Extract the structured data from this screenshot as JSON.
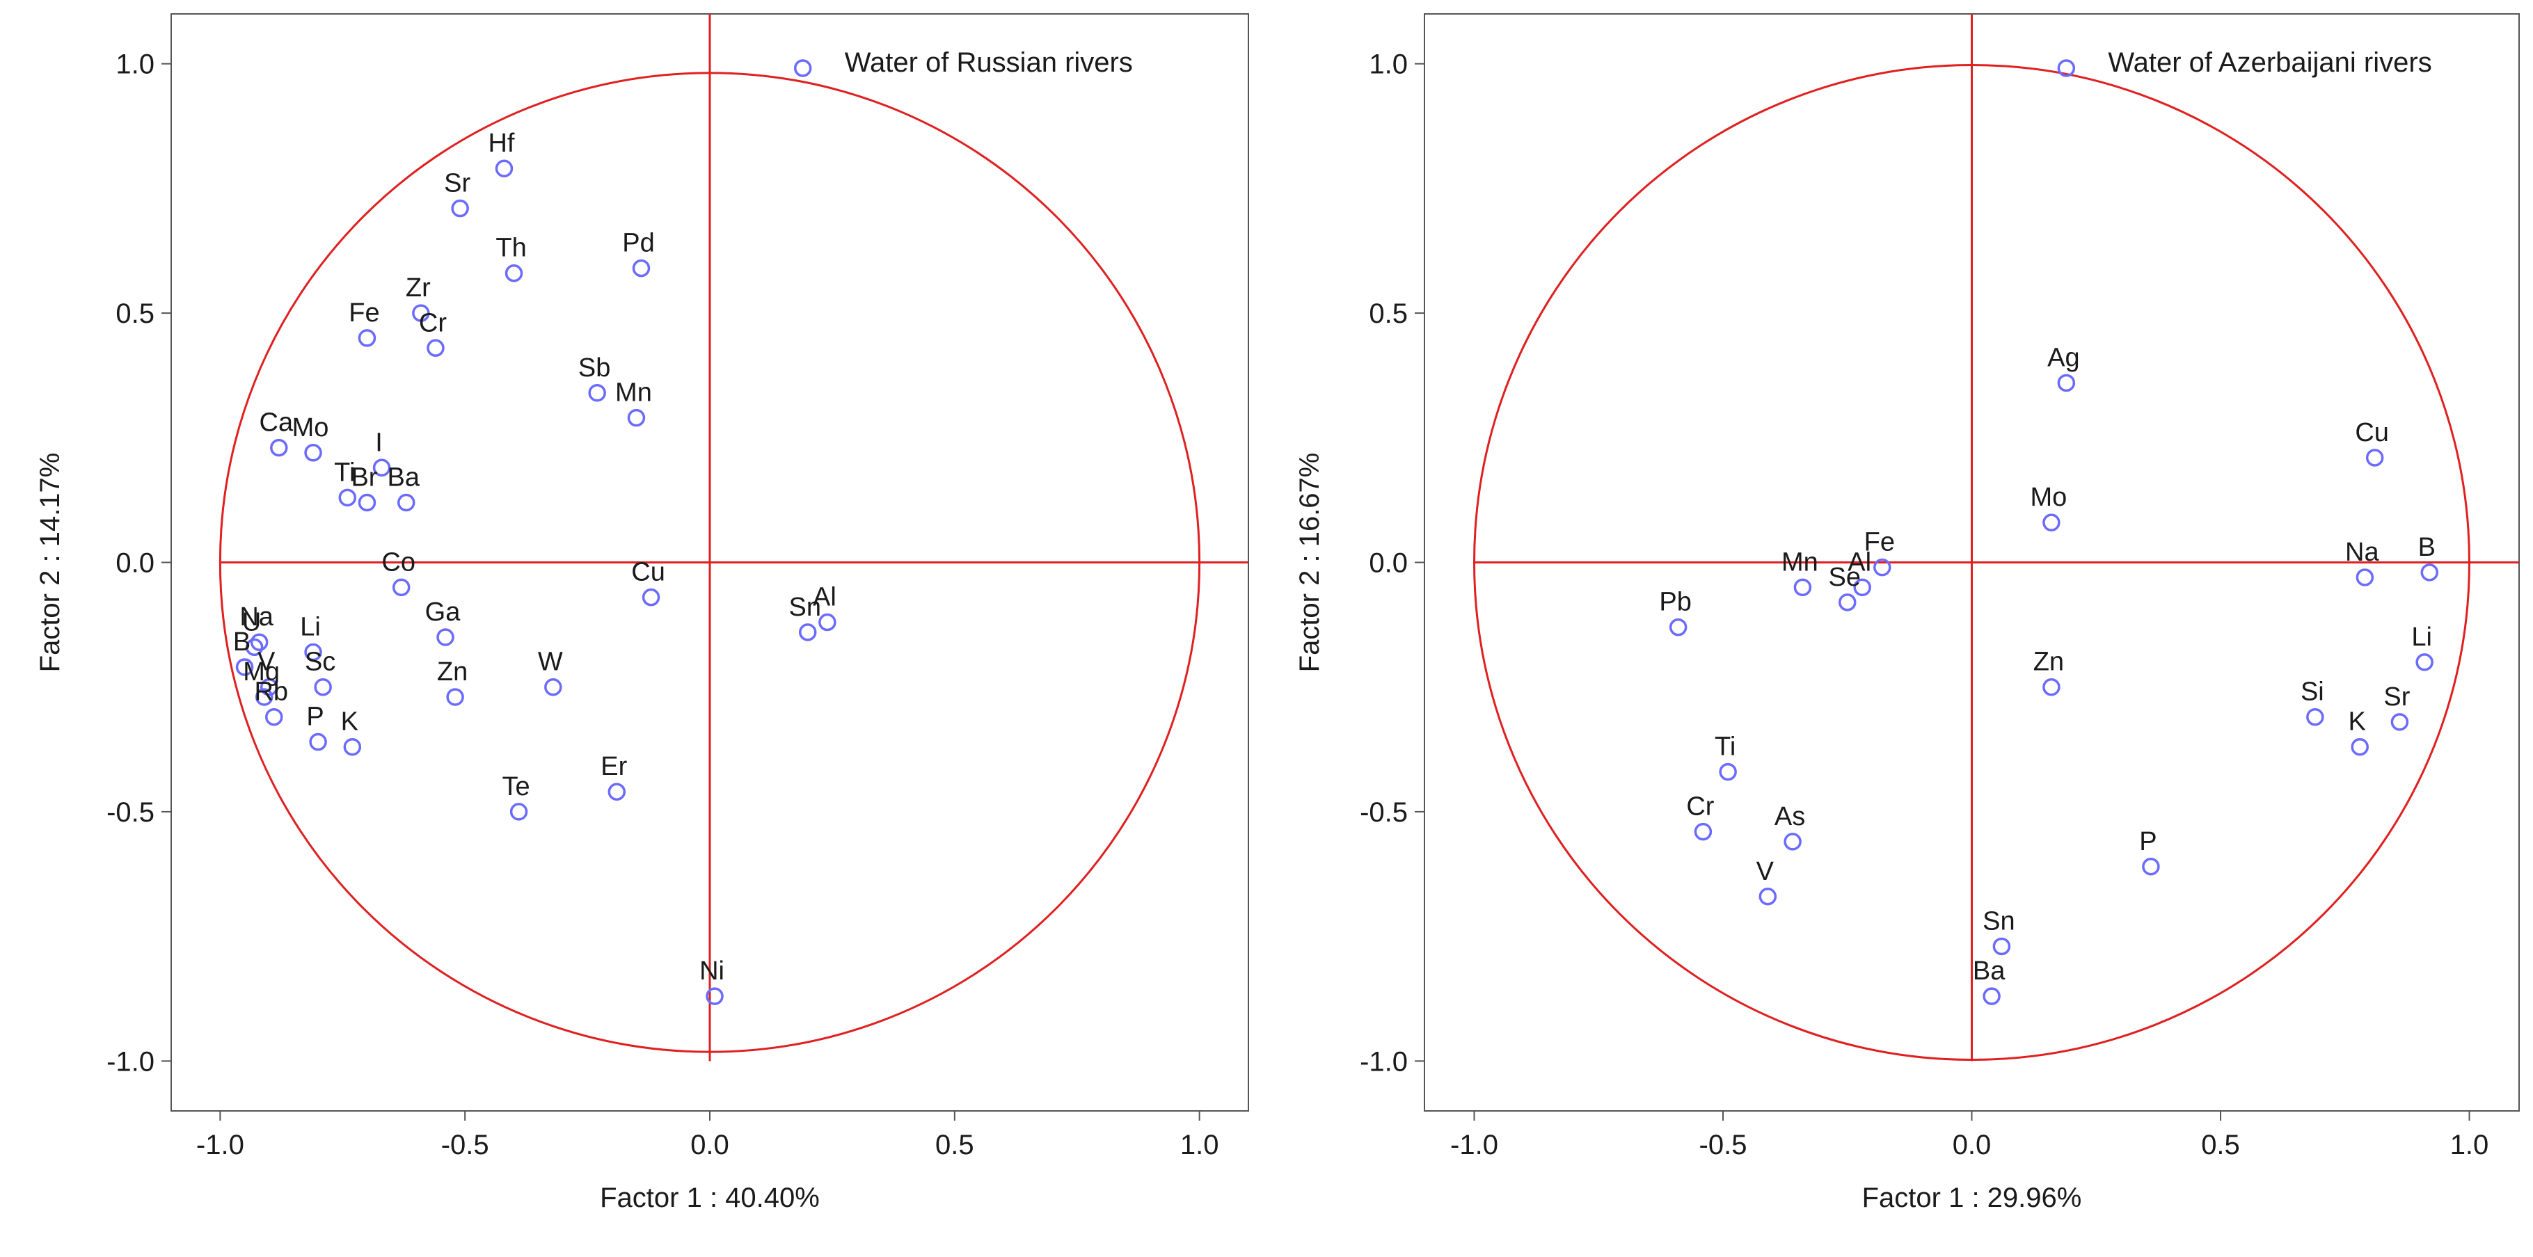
{
  "chart_data": [
    {
      "type": "scatter",
      "title": "",
      "legend": "Water of Russian rivers",
      "legend_position": "top-right",
      "xlabel": "Factor 1 : 40.40%",
      "ylabel": "Factor 2 : 14.17%",
      "xlim": [
        -1.1,
        1.1
      ],
      "ylim": [
        -1.1,
        1.1
      ],
      "xticks": [
        "-1.0",
        "-0.5",
        "0.0",
        "0.5",
        "1.0"
      ],
      "yticks": [
        "-1.0",
        "-0.5",
        "0.0",
        "0.5",
        "1.0"
      ],
      "marker_color": "#6b6bff",
      "axis_color": "#e02020",
      "points": [
        {
          "label": "Hf",
          "x": -0.42,
          "y": 0.79
        },
        {
          "label": "Sr",
          "x": -0.51,
          "y": 0.71
        },
        {
          "label": "Th",
          "x": -0.4,
          "y": 0.58
        },
        {
          "label": "Pd",
          "x": -0.14,
          "y": 0.59
        },
        {
          "label": "Zr",
          "x": -0.59,
          "y": 0.5
        },
        {
          "label": "Fe",
          "x": -0.7,
          "y": 0.45
        },
        {
          "label": "Cr",
          "x": -0.56,
          "y": 0.43
        },
        {
          "label": "Sb",
          "x": -0.23,
          "y": 0.34
        },
        {
          "label": "Mn",
          "x": -0.15,
          "y": 0.29
        },
        {
          "label": "Ca",
          "x": -0.88,
          "y": 0.23
        },
        {
          "label": "Mo",
          "x": -0.81,
          "y": 0.22
        },
        {
          "label": "I",
          "x": -0.67,
          "y": 0.19
        },
        {
          "label": "Br",
          "x": -0.7,
          "y": 0.12
        },
        {
          "label": "Ti",
          "x": -0.74,
          "y": 0.13
        },
        {
          "label": "Ba",
          "x": -0.62,
          "y": 0.12
        },
        {
          "label": "Co",
          "x": -0.63,
          "y": -0.05
        },
        {
          "label": "Cu",
          "x": -0.12,
          "y": -0.07
        },
        {
          "label": "Sn",
          "x": 0.2,
          "y": -0.14
        },
        {
          "label": "Al",
          "x": 0.24,
          "y": -0.12
        },
        {
          "label": "U",
          "x": -0.93,
          "y": -0.17
        },
        {
          "label": "Na",
          "x": -0.92,
          "y": -0.16
        },
        {
          "label": "Li",
          "x": -0.81,
          "y": -0.18
        },
        {
          "label": "Ga",
          "x": -0.54,
          "y": -0.15
        },
        {
          "label": "B",
          "x": -0.95,
          "y": -0.21
        },
        {
          "label": "V",
          "x": -0.9,
          "y": -0.25
        },
        {
          "label": "Sc",
          "x": -0.79,
          "y": -0.25
        },
        {
          "label": "Mg",
          "x": -0.91,
          "y": -0.27
        },
        {
          "label": "Rb",
          "x": -0.89,
          "y": -0.31
        },
        {
          "label": "P",
          "x": -0.8,
          "y": -0.36
        },
        {
          "label": "K",
          "x": -0.73,
          "y": -0.37
        },
        {
          "label": "Zn",
          "x": -0.52,
          "y": -0.27
        },
        {
          "label": "W",
          "x": -0.32,
          "y": -0.25
        },
        {
          "label": "Er",
          "x": -0.19,
          "y": -0.46
        },
        {
          "label": "Te",
          "x": -0.39,
          "y": -0.5
        },
        {
          "label": "Ni",
          "x": 0.01,
          "y": -0.87
        }
      ]
    },
    {
      "type": "scatter",
      "title": "",
      "legend": "Water of Azerbaijani rivers",
      "legend_position": "top-right",
      "xlabel": "Factor 1 : 29.96%",
      "ylabel": "Factor 2 : 16.67%",
      "xlim": [
        -1.1,
        1.1
      ],
      "ylim": [
        -1.1,
        1.1
      ],
      "xticks": [
        "-1.0",
        "-0.5",
        "0.0",
        "0.5",
        "1.0"
      ],
      "yticks": [
        "-1.0",
        "-0.5",
        "0.0",
        "0.5",
        "1.0"
      ],
      "marker_color": "#6b6bff",
      "axis_color": "#e02020",
      "points": [
        {
          "label": "Ag",
          "x": 0.19,
          "y": 0.36
        },
        {
          "label": "Cu",
          "x": 0.81,
          "y": 0.21
        },
        {
          "label": "Mo",
          "x": 0.16,
          "y": 0.08
        },
        {
          "label": "Fe",
          "x": -0.18,
          "y": -0.01
        },
        {
          "label": "Na",
          "x": 0.79,
          "y": -0.03
        },
        {
          "label": "B",
          "x": 0.92,
          "y": -0.02
        },
        {
          "label": "Mn",
          "x": -0.34,
          "y": -0.05
        },
        {
          "label": "Al",
          "x": -0.22,
          "y": -0.05
        },
        {
          "label": "Se",
          "x": -0.25,
          "y": -0.08
        },
        {
          "label": "Pb",
          "x": -0.59,
          "y": -0.13
        },
        {
          "label": "Li",
          "x": 0.91,
          "y": -0.2
        },
        {
          "label": "Zn",
          "x": 0.16,
          "y": -0.25
        },
        {
          "label": "Si",
          "x": 0.69,
          "y": -0.31
        },
        {
          "label": "Sr",
          "x": 0.86,
          "y": -0.32
        },
        {
          "label": "K",
          "x": 0.78,
          "y": -0.37
        },
        {
          "label": "Ti",
          "x": -0.49,
          "y": -0.42
        },
        {
          "label": "Cr",
          "x": -0.54,
          "y": -0.54
        },
        {
          "label": "As",
          "x": -0.36,
          "y": -0.56
        },
        {
          "label": "P",
          "x": 0.36,
          "y": -0.61
        },
        {
          "label": "V",
          "x": -0.41,
          "y": -0.67
        },
        {
          "label": "Sn",
          "x": 0.06,
          "y": -0.77
        },
        {
          "label": "Ba",
          "x": 0.04,
          "y": -0.87
        }
      ]
    }
  ]
}
